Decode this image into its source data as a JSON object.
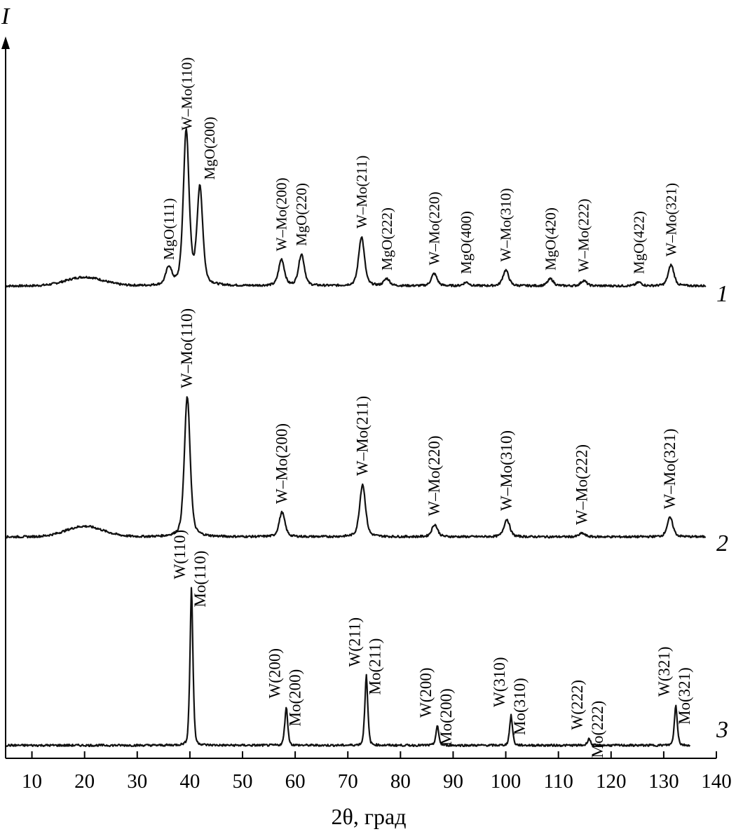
{
  "chart_data": {
    "type": "line",
    "title": "",
    "xlabel": "2θ, град",
    "ylabel": "I",
    "xlim": [
      5,
      140
    ],
    "x_ticks": [
      10,
      20,
      30,
      40,
      50,
      60,
      70,
      80,
      90,
      100,
      110,
      120,
      130,
      140
    ],
    "x_tick_labels": [
      "10",
      "20",
      "30",
      "40",
      "50",
      "60",
      "70",
      "80",
      "90",
      "100",
      "110",
      "120",
      "130",
      "140"
    ],
    "series": [
      {
        "name": "1",
        "x_range": [
          5,
          138
        ],
        "baseline": 0.04,
        "hump": {
          "center": 20,
          "width": 5,
          "height": 0.05
        },
        "peaks": [
          {
            "x": 36.0,
            "height": 0.1,
            "label": "MgO(111)"
          },
          {
            "x": 39.3,
            "height": 0.88,
            "label": "W–Mo(110)"
          },
          {
            "x": 41.9,
            "height": 0.55,
            "label": "MgO(200)"
          },
          {
            "x": 57.4,
            "height": 0.15,
            "label": "W–Mo(200)"
          },
          {
            "x": 61.2,
            "height": 0.18,
            "label": "MgO(220)"
          },
          {
            "x": 72.6,
            "height": 0.28,
            "label": "W–Mo(211)"
          },
          {
            "x": 77.4,
            "height": 0.04,
            "label": "MgO(222)"
          },
          {
            "x": 86.4,
            "height": 0.07,
            "label": "W–Mo(220)"
          },
          {
            "x": 92.5,
            "height": 0.02,
            "label": "MgO(400)"
          },
          {
            "x": 100.0,
            "height": 0.09,
            "label": "W–Mo(310)"
          },
          {
            "x": 108.5,
            "height": 0.04,
            "label": "MgO(420)"
          },
          {
            "x": 114.8,
            "height": 0.03,
            "label": "W–Mo(222)"
          },
          {
            "x": 125.3,
            "height": 0.02,
            "label": "MgO(422)"
          },
          {
            "x": 131.4,
            "height": 0.12,
            "label": "W–Mo(321)"
          }
        ]
      },
      {
        "name": "2",
        "x_range": [
          5,
          138
        ],
        "baseline": 0.04,
        "hump": {
          "center": 20,
          "width": 5,
          "height": 0.06
        },
        "peaks": [
          {
            "x": 39.5,
            "height": 0.8,
            "label": "W–Mo(110)"
          },
          {
            "x": 57.5,
            "height": 0.14,
            "label": "W–Mo(200)"
          },
          {
            "x": 72.8,
            "height": 0.3,
            "label": "W–Mo(211)"
          },
          {
            "x": 86.5,
            "height": 0.07,
            "label": "W–Mo(220)"
          },
          {
            "x": 100.2,
            "height": 0.1,
            "label": "W–Mo(310)"
          },
          {
            "x": 114.5,
            "height": 0.02,
            "label": "W–Mo(222)"
          },
          {
            "x": 131.2,
            "height": 0.11,
            "label": "W–Mo(321)"
          }
        ]
      },
      {
        "name": "3",
        "x_range": [
          5,
          135
        ],
        "baseline": 0.01,
        "hump": null,
        "peaks": [
          {
            "x": 40.3,
            "height": 0.9,
            "labels": [
              "W(110)",
              "Mo(110)"
            ]
          },
          {
            "x": 58.3,
            "height": 0.22,
            "labels": [
              "W(200)",
              "Mo(200)"
            ]
          },
          {
            "x": 73.5,
            "height": 0.4,
            "labels": [
              "W(211)",
              "Mo(211)"
            ]
          },
          {
            "x": 87.0,
            "height": 0.11,
            "labels": [
              "W(200)",
              "Mo(200)"
            ]
          },
          {
            "x": 101.0,
            "height": 0.17,
            "labels": [
              "W(310)",
              "Mo(310)"
            ]
          },
          {
            "x": 115.8,
            "height": 0.04,
            "labels": [
              "W(222)",
              "Mo(222)"
            ]
          },
          {
            "x": 132.3,
            "height": 0.23,
            "labels": [
              "W(321)",
              "Mo(321)"
            ]
          }
        ]
      }
    ]
  }
}
